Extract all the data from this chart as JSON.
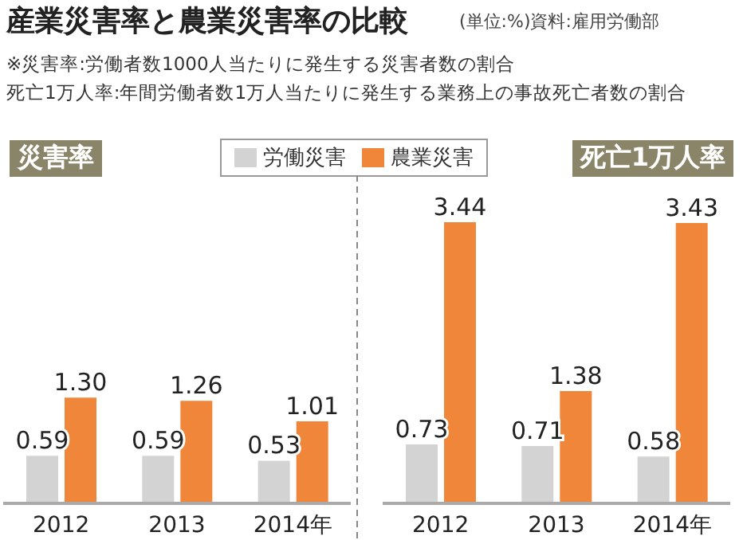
{
  "chart_data": [
    {
      "type": "bar",
      "title": "災害率",
      "annotations": [
        "産業災害率と農業災害率の比較",
        "(単位:%)資料:雇用労働部",
        "※災害率:労働者数1000人当たりに発生する災害者数の割合",
        "死亡1万人率:年間労働者数1万人当たりに発生する業務上の事故死亡者数の割合"
      ],
      "categories": [
        "2012",
        "2013",
        "2014年"
      ],
      "series": [
        {
          "name": "労働災害",
          "color": "#d3d3d3",
          "values": [
            0.59,
            0.59,
            0.53
          ],
          "value_labels": [
            "0.59",
            "0.59",
            "0.53"
          ]
        },
        {
          "name": "農業災害",
          "color": "#f0863a",
          "values": [
            1.3,
            1.26,
            1.01
          ],
          "value_labels": [
            "1.30",
            "1.26",
            "1.01"
          ]
        }
      ],
      "tick_labels": "x",
      "legend": "top"
    },
    {
      "type": "bar",
      "title": "死亡1万人率",
      "categories": [
        "2012",
        "2013",
        "2014年"
      ],
      "series": [
        {
          "color": "#d3d3d3",
          "values": [
            0.73,
            0.71,
            0.58
          ],
          "value_labels": [
            "0.73",
            "0.71",
            "0.58"
          ]
        },
        {
          "color": "#f0863a",
          "values": [
            3.44,
            1.38,
            3.43
          ],
          "value_labels": [
            "3.44",
            "1.38",
            "3.43"
          ]
        }
      ],
      "tick_labels": "x"
    }
  ]
}
